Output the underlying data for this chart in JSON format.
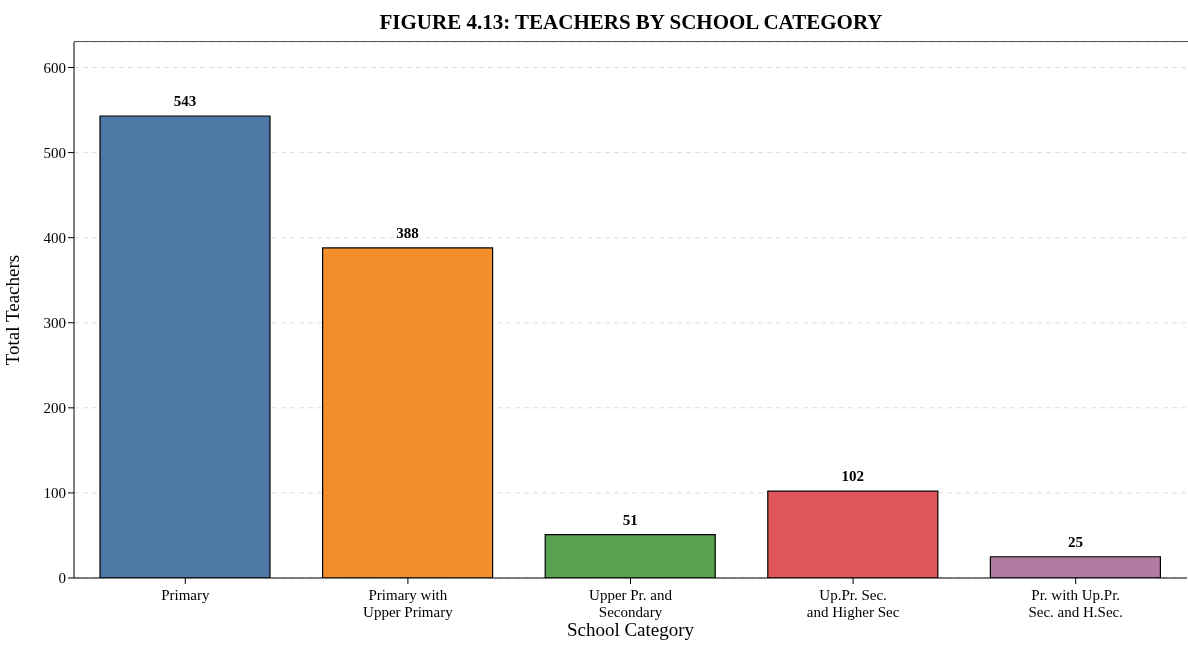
{
  "chart_data": {
    "type": "bar",
    "title": "FIGURE 4.13: TEACHERS BY SCHOOL CATEGORY",
    "xlabel": "School Category",
    "ylabel": "Total Teachers",
    "categories": [
      "Primary",
      "Primary with\nUpper Primary",
      "Upper Pr. and\nSecondary",
      "Up.Pr. Sec.\nand Higher Sec",
      "Pr. with Up.Pr.\nSec. and H.Sec."
    ],
    "values": [
      543,
      388,
      51,
      102,
      25
    ],
    "colors": [
      "#4e79a7",
      "#f28e2b",
      "#59a14f",
      "#e15759",
      "#b07aa1"
    ],
    "ylim": [
      0,
      630
    ],
    "yticks": [
      0,
      100,
      200,
      300,
      400,
      500,
      600
    ],
    "grid": "y",
    "data_labels": true
  }
}
